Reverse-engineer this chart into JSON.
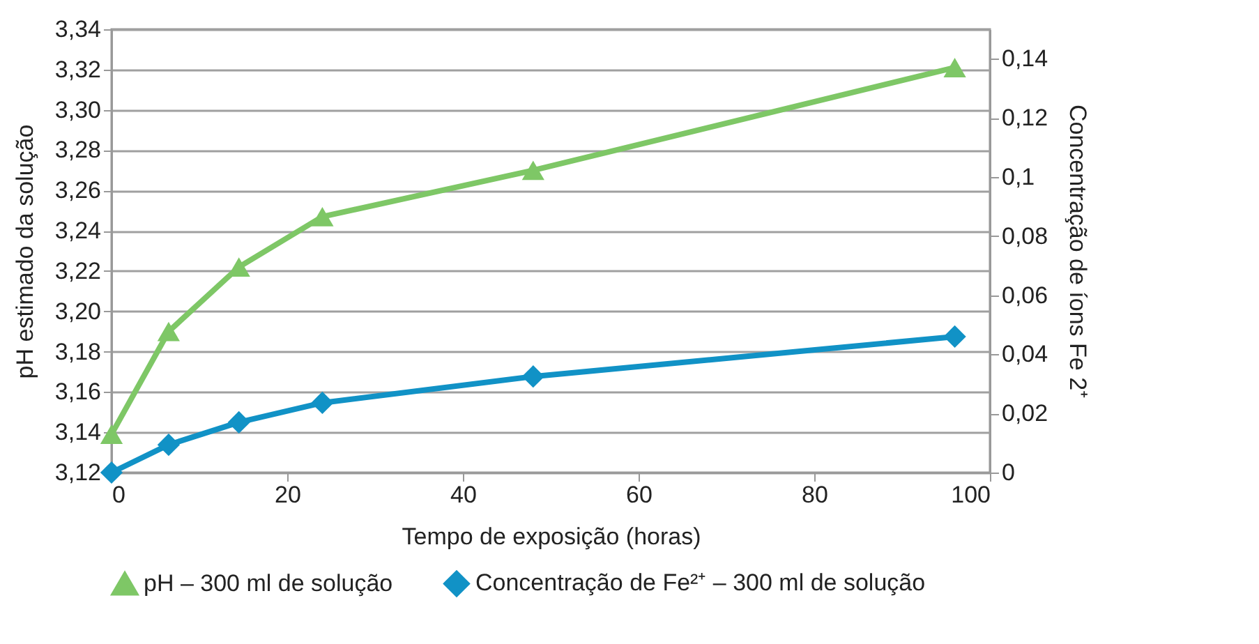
{
  "chart_data": {
    "type": "line",
    "xlabel": "Tempo de exposição (horas)",
    "ylabel": "pH estimado da solução",
    "y2label": "Concentração de íons Fe 2⁺",
    "x": [
      0,
      6.5,
      14.5,
      24,
      48,
      96
    ],
    "series": [
      {
        "name": "pH – 300 ml de solução",
        "color": "#7ec766",
        "marker": "triangle",
        "values": [
          3.139,
          3.19,
          3.222,
          3.247,
          3.27,
          3.321
        ]
      },
      {
        "name": "Concentração de Fe²⁺ –  300 ml de solução",
        "color": "#1192c6",
        "marker": "diamond",
        "axis": "y2",
        "values": [
          0,
          0.0094,
          0.017,
          0.0236,
          0.0325,
          0.046
        ]
      }
    ],
    "xlim": [
      0,
      100
    ],
    "xticks": [
      0,
      20,
      40,
      60,
      80,
      100
    ],
    "ylim": [
      3.12,
      3.34
    ],
    "yticks": [
      {
        "value": 3.12,
        "label": "3,12"
      },
      {
        "value": 3.14,
        "label": "3,14"
      },
      {
        "value": 3.16,
        "label": "3,16"
      },
      {
        "value": 3.18,
        "label": "3,18"
      },
      {
        "value": 3.2,
        "label": "3,20"
      },
      {
        "value": 3.22,
        "label": "3,22"
      },
      {
        "value": 3.24,
        "label": "3,24"
      },
      {
        "value": 3.26,
        "label": "3,26"
      },
      {
        "value": 3.28,
        "label": "3,28"
      },
      {
        "value": 3.3,
        "label": "3,30"
      },
      {
        "value": 3.32,
        "label": "3,32"
      },
      {
        "value": 3.34,
        "label": "3,34"
      }
    ],
    "y2lim": [
      0,
      0.15
    ],
    "y2ticks": [
      {
        "value": 0,
        "label": "0"
      },
      {
        "value": 0.02,
        "label": "0,02"
      },
      {
        "value": 0.04,
        "label": "0,04"
      },
      {
        "value": 0.06,
        "label": "0,06"
      },
      {
        "value": 0.08,
        "label": "0,08"
      },
      {
        "value": 0.1,
        "label": "0,1"
      },
      {
        "value": 0.12,
        "label": "0,12"
      },
      {
        "value": 0.14,
        "label": "0,14"
      }
    ],
    "grid": "y",
    "legend": "bottom",
    "line_style": "solid"
  }
}
